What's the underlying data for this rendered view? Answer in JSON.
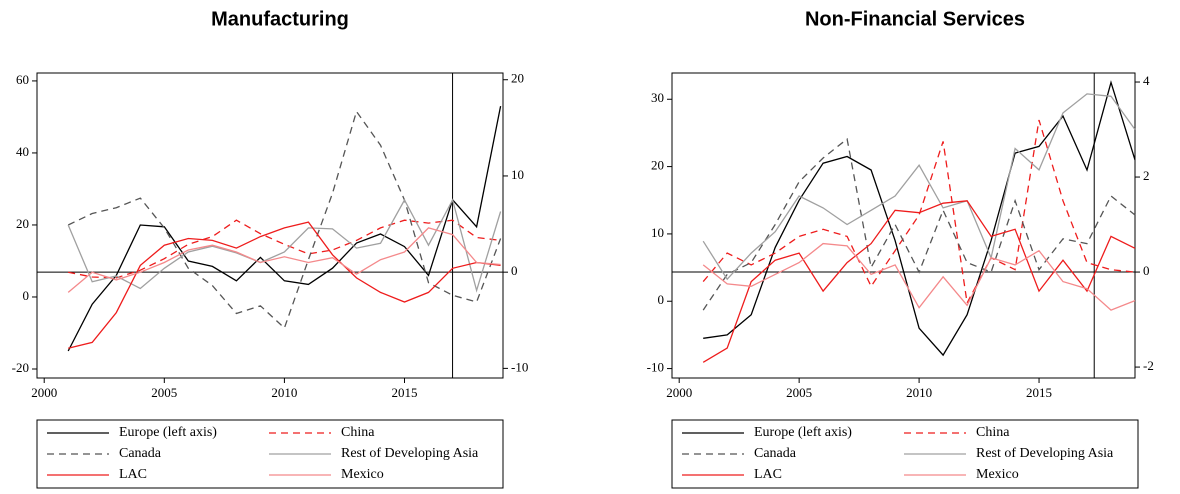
{
  "chart_data": [
    {
      "type": "line",
      "title": "Manufacturing",
      "x": [
        2001,
        2002,
        2003,
        2004,
        2005,
        2006,
        2007,
        2008,
        2009,
        2010,
        2011,
        2012,
        2013,
        2014,
        2015,
        2016,
        2017,
        2018,
        2019
      ],
      "xlim": [
        1999.7,
        2019.1
      ],
      "xticks": [
        2000,
        2005,
        2010,
        2015
      ],
      "ylim": [
        -22.5,
        62.2
      ],
      "yticks": [
        -20,
        0,
        20,
        40,
        60
      ],
      "y2lim": [
        -11,
        20.7
      ],
      "y2ticks": [
        -10,
        0,
        10,
        20
      ],
      "vline": 2017,
      "y2_hline": 0,
      "series": [
        {
          "name": "Europe (left axis)",
          "color": "#000000",
          "dash": false,
          "values": [
            -15,
            -2,
            6,
            20,
            19.5,
            10,
            8.5,
            4.5,
            11,
            4.5,
            3.5,
            8,
            15,
            17.5,
            14,
            6,
            27,
            19.5,
            53
          ]
        },
        {
          "name": "China",
          "color": "#ee1c1c",
          "dash": true,
          "axis": "y2",
          "values": [
            0,
            -0.5,
            -0.6,
            0.2,
            1.4,
            2.9,
            3.7,
            5.4,
            4,
            2.9,
            1.9,
            2.3,
            3.3,
            4.6,
            5.4,
            5.1,
            5.4,
            3.6,
            3.3
          ]
        },
        {
          "name": "Canada",
          "color": "#555555",
          "dash": true,
          "axis": "y2",
          "values": [
            4.9,
            6.1,
            6.7,
            7.7,
            4.6,
            0.4,
            -1.4,
            -4.3,
            -3.5,
            -5.8,
            1.3,
            8.2,
            16.7,
            13.2,
            7.5,
            -1.1,
            -2.4,
            -3.1,
            3.5
          ]
        },
        {
          "name": "Rest of Developing Asia",
          "color": "#a0a0a0",
          "dash": false,
          "axis": "y2",
          "values": [
            4.9,
            -1,
            -0.4,
            -1.7,
            0.4,
            2.1,
            2.7,
            2,
            1,
            2.1,
            4.6,
            4.5,
            2.5,
            3,
            7.5,
            2.8,
            7.5,
            -1.9,
            6.3
          ]
        },
        {
          "name": "LAC",
          "color": "#ee1c1c",
          "dash": false,
          "axis": "y2",
          "values": [
            -7.9,
            -7.3,
            -4.2,
            0.7,
            2.8,
            3.5,
            3.3,
            2.5,
            3.7,
            4.6,
            5.2,
            1.8,
            -0.6,
            -2.1,
            -3.1,
            -2.1,
            0.4,
            1,
            0.7
          ]
        },
        {
          "name": "Mexico",
          "color": "#f4898b",
          "dash": false,
          "axis": "y2",
          "values": [
            -2.1,
            0,
            -0.8,
            0,
            1,
            2.3,
            2.8,
            2.1,
            1,
            1.6,
            1,
            1.5,
            -0.2,
            1.3,
            2.1,
            4.6,
            3.9,
            1,
            0.8
          ]
        }
      ]
    },
    {
      "type": "line",
      "title": "Non-Financial Services",
      "x": [
        2001,
        2002,
        2003,
        2004,
        2005,
        2006,
        2007,
        2008,
        2009,
        2010,
        2011,
        2012,
        2013,
        2014,
        2015,
        2016,
        2017,
        2018,
        2019
      ],
      "xlim": [
        1999.7,
        2019.0
      ],
      "xticks": [
        2000,
        2005,
        2010,
        2015
      ],
      "ylim": [
        -11.4,
        33.9
      ],
      "yticks": [
        -10,
        0,
        10,
        20,
        30
      ],
      "y2lim": [
        -2.23,
        4.19
      ],
      "y2ticks": [
        -2,
        0,
        2,
        4
      ],
      "vline": 2017.3,
      "y2_hline": 0,
      "series": [
        {
          "name": "Europe (left axis)",
          "color": "#000000",
          "dash": false,
          "values": [
            -5.5,
            -5,
            -2,
            8,
            15,
            20.5,
            21.5,
            19.5,
            9,
            -4,
            -8,
            -2,
            9,
            22,
            23,
            27.5,
            19.5,
            32.5,
            21
          ]
        },
        {
          "name": "China",
          "color": "#ee1c1c",
          "dash": true,
          "axis": "y2",
          "values": [
            -0.2,
            0.4,
            0.15,
            0.4,
            0.75,
            0.9,
            0.75,
            -0.3,
            0.45,
            1.2,
            2.75,
            -0.65,
            0.3,
            0.05,
            3.2,
            1.5,
            0.2,
            0.05,
            0
          ]
        },
        {
          "name": "Canada",
          "color": "#555555",
          "dash": true,
          "axis": "y2",
          "values": [
            -0.8,
            -0.05,
            0.2,
            1,
            1.9,
            2.4,
            2.8,
            0.1,
            1,
            0,
            1.3,
            0.2,
            0,
            1.5,
            0.05,
            0.7,
            0.6,
            1.6,
            1.2
          ]
        },
        {
          "name": "Rest of Developing Asia",
          "color": "#a0a0a0",
          "dash": false,
          "axis": "y2",
          "values": [
            0.65,
            -0.15,
            0.4,
            0.85,
            1.6,
            1.35,
            1,
            1.3,
            1.6,
            2.25,
            1.35,
            1.5,
            0.3,
            2.6,
            2.15,
            3.35,
            3.75,
            3.7,
            3
          ]
        },
        {
          "name": "LAC",
          "color": "#ee1c1c",
          "dash": false,
          "axis": "y2",
          "values": [
            -1.9,
            -1.6,
            -0.2,
            0.25,
            0.4,
            -0.4,
            0.2,
            0.6,
            1.3,
            1.25,
            1.45,
            1.5,
            0.75,
            0.9,
            -0.4,
            0.25,
            -0.4,
            0.75,
            0.5
          ]
        },
        {
          "name": "Mexico",
          "color": "#f4898b",
          "dash": false,
          "axis": "y2",
          "values": [
            0.15,
            -0.25,
            -0.3,
            -0.05,
            0.2,
            0.6,
            0.55,
            -0.05,
            0.15,
            -0.75,
            -0.1,
            -0.7,
            0.3,
            0.15,
            0.45,
            -0.2,
            -0.35,
            -0.8,
            -0.6
          ]
        }
      ]
    }
  ]
}
